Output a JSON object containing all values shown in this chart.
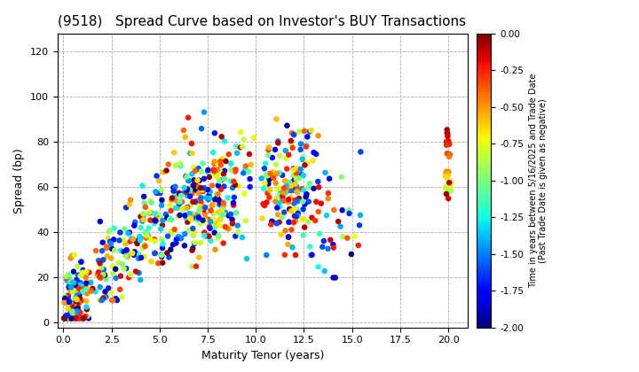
{
  "title": "(9518)   Spread Curve based on Investor's BUY Transactions",
  "xlabel": "Maturity Tenor (years)",
  "ylabel": "Spread (bp)",
  "colorbar_label": "Time in years between 5/16/2025 and Trade Date\n(Past Trade Date is given as negative)",
  "xlim": [
    -0.3,
    21.0
  ],
  "ylim": [
    -2,
    128
  ],
  "xticks": [
    0.0,
    2.5,
    5.0,
    7.5,
    10.0,
    12.5,
    15.0,
    17.5,
    20.0
  ],
  "yticks": [
    0,
    20,
    40,
    60,
    80,
    100,
    120
  ],
  "cbar_ticks": [
    0.0,
    -0.25,
    -0.5,
    -0.75,
    -1.0,
    -1.25,
    -1.5,
    -1.75,
    -2.0
  ],
  "vmin": -2.0,
  "vmax": 0.0,
  "dot_size": 22,
  "background_color": "#ffffff",
  "grid_color": "#aaaaaa",
  "seed": 42
}
